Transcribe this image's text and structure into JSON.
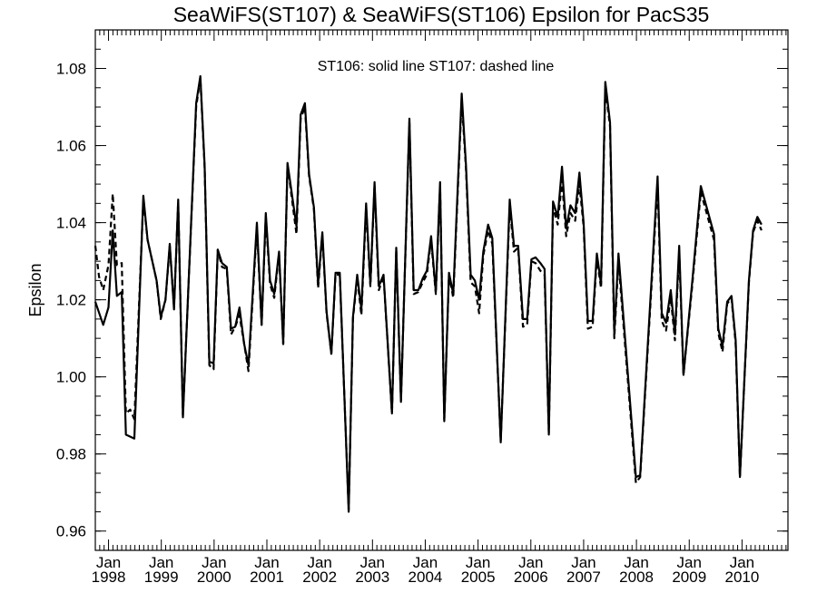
{
  "chart_data": {
    "type": "line",
    "title": "SeaWiFS(ST107) & SeaWiFS(ST106)  Epsilon for PacS35",
    "annotation": "ST106: solid line   ST107: dashed line",
    "ylabel": "Epsilon",
    "xlabel": "",
    "ylim": [
      0.955,
      1.09
    ],
    "yticks": [
      0.96,
      0.98,
      1.0,
      1.02,
      1.04,
      1.06,
      1.08
    ],
    "ytick_labels": [
      "0.96",
      "0.98",
      "1.00",
      "1.02",
      "1.04",
      "1.06",
      "1.08"
    ],
    "x_unit": "decimal year",
    "xlim": [
      1997.75,
      2010.87
    ],
    "xticks": [
      {
        "x": 1998.0,
        "month": "Jan",
        "year": "1998"
      },
      {
        "x": 1999.0,
        "month": "Jan",
        "year": "1999"
      },
      {
        "x": 2000.0,
        "month": "Jan",
        "year": "2000"
      },
      {
        "x": 2001.0,
        "month": "Jan",
        "year": "2001"
      },
      {
        "x": 2002.0,
        "month": "Jan",
        "year": "2002"
      },
      {
        "x": 2003.0,
        "month": "Jan",
        "year": "2003"
      },
      {
        "x": 2004.0,
        "month": "Jan",
        "year": "2004"
      },
      {
        "x": 2005.0,
        "month": "Jan",
        "year": "2005"
      },
      {
        "x": 2006.0,
        "month": "Jan",
        "year": "2006"
      },
      {
        "x": 2007.0,
        "month": "Jan",
        "year": "2007"
      },
      {
        "x": 2008.0,
        "month": "Jan",
        "year": "2008"
      },
      {
        "x": 2009.0,
        "month": "Jan",
        "year": "2009"
      },
      {
        "x": 2010.0,
        "month": "Jan",
        "year": "2010"
      }
    ],
    "series": [
      {
        "name": "ST106",
        "style": "solid",
        "color": "#000000",
        "points": [
          [
            1997.75,
            1.0195
          ],
          [
            1997.9,
            1.0135
          ],
          [
            1998.0,
            1.018
          ],
          [
            1998.08,
            1.038
          ],
          [
            1998.16,
            1.021
          ],
          [
            1998.25,
            1.022
          ],
          [
            1998.33,
            0.985
          ],
          [
            1998.49,
            0.984
          ],
          [
            1998.66,
            1.047
          ],
          [
            1998.74,
            1.0355
          ],
          [
            1998.91,
            1.025
          ],
          [
            1998.99,
            1.0155
          ],
          [
            1999.08,
            1.02
          ],
          [
            1999.16,
            1.0345
          ],
          [
            1999.24,
            1.0175
          ],
          [
            1999.32,
            1.046
          ],
          [
            1999.41,
            0.9895
          ],
          [
            1999.66,
            1.071
          ],
          [
            1999.74,
            1.078
          ],
          [
            1999.82,
            1.055
          ],
          [
            1999.91,
            1.004
          ],
          [
            1999.99,
            1.0035
          ],
          [
            2000.07,
            1.033
          ],
          [
            2000.15,
            1.0295
          ],
          [
            2000.24,
            1.0285
          ],
          [
            2000.32,
            1.0125
          ],
          [
            2000.4,
            1.013
          ],
          [
            2000.48,
            1.018
          ],
          [
            2000.57,
            1.0085
          ],
          [
            2000.65,
            1.003
          ],
          [
            2000.81,
            1.04
          ],
          [
            2000.9,
            1.0135
          ],
          [
            2000.98,
            1.0425
          ],
          [
            2001.06,
            1.025
          ],
          [
            2001.14,
            1.0215
          ],
          [
            2001.23,
            1.0325
          ],
          [
            2001.31,
            1.0085
          ],
          [
            2001.39,
            1.0555
          ],
          [
            2001.56,
            1.039
          ],
          [
            2001.64,
            1.068
          ],
          [
            2001.72,
            1.071
          ],
          [
            2001.8,
            1.0525
          ],
          [
            2001.89,
            1.044
          ],
          [
            2001.97,
            1.024
          ],
          [
            2002.05,
            1.0375
          ],
          [
            2002.13,
            1.017
          ],
          [
            2002.22,
            1.006
          ],
          [
            2002.3,
            1.027
          ],
          [
            2002.38,
            1.027
          ],
          [
            2002.55,
            0.965
          ],
          [
            2002.63,
            1.0155
          ],
          [
            2002.71,
            1.0265
          ],
          [
            2002.79,
            1.0175
          ],
          [
            2002.88,
            1.045
          ],
          [
            2002.96,
            1.024
          ],
          [
            2003.04,
            1.0505
          ],
          [
            2003.12,
            1.0235
          ],
          [
            2003.21,
            1.0265
          ],
          [
            2003.37,
            0.9905
          ],
          [
            2003.45,
            1.0335
          ],
          [
            2003.54,
            0.9935
          ],
          [
            2003.7,
            1.067
          ],
          [
            2003.78,
            1.0225
          ],
          [
            2003.87,
            1.0225
          ],
          [
            2003.95,
            1.0255
          ],
          [
            2004.03,
            1.0275
          ],
          [
            2004.11,
            1.0365
          ],
          [
            2004.2,
            1.022
          ],
          [
            2004.28,
            1.0505
          ],
          [
            2004.36,
            0.9885
          ],
          [
            2004.45,
            1.027
          ],
          [
            2004.53,
            1.0215
          ],
          [
            2004.69,
            1.0735
          ],
          [
            2004.77,
            1.055
          ],
          [
            2004.86,
            1.0265
          ],
          [
            2004.94,
            1.025
          ],
          [
            2005.02,
            1.02
          ],
          [
            2005.1,
            1.0325
          ],
          [
            2005.19,
            1.0395
          ],
          [
            2005.27,
            1.036
          ],
          [
            2005.43,
            0.983
          ],
          [
            2005.6,
            1.046
          ],
          [
            2005.68,
            1.034
          ],
          [
            2005.76,
            1.034
          ],
          [
            2005.85,
            1.015
          ],
          [
            2005.93,
            1.015
          ],
          [
            2006.01,
            1.0305
          ],
          [
            2006.09,
            1.031
          ],
          [
            2006.18,
            1.0295
          ],
          [
            2006.26,
            1.028
          ],
          [
            2006.34,
            0.985
          ],
          [
            2006.42,
            1.0455
          ],
          [
            2006.51,
            1.0415
          ],
          [
            2006.59,
            1.0545
          ],
          [
            2006.67,
            1.0385
          ],
          [
            2006.75,
            1.0445
          ],
          [
            2006.84,
            1.0425
          ],
          [
            2006.92,
            1.053
          ],
          [
            2007.0,
            1.04
          ],
          [
            2007.08,
            1.0145
          ],
          [
            2007.17,
            1.0145
          ],
          [
            2007.25,
            1.032
          ],
          [
            2007.33,
            1.024
          ],
          [
            2007.41,
            1.0765
          ],
          [
            2007.5,
            1.066
          ],
          [
            2007.58,
            1.0115
          ],
          [
            2007.66,
            1.032
          ],
          [
            2007.99,
            0.974
          ],
          [
            2008.07,
            0.9745
          ],
          [
            2008.4,
            1.052
          ],
          [
            2008.48,
            1.0165
          ],
          [
            2008.56,
            1.014
          ],
          [
            2008.65,
            1.0225
          ],
          [
            2008.73,
            1.011
          ],
          [
            2008.81,
            1.034
          ],
          [
            2008.89,
            1.0005
          ],
          [
            2009.06,
            1.025
          ],
          [
            2009.22,
            1.0495
          ],
          [
            2009.47,
            1.037
          ],
          [
            2009.55,
            1.0125
          ],
          [
            2009.63,
            1.008
          ],
          [
            2009.72,
            1.0195
          ],
          [
            2009.8,
            1.021
          ],
          [
            2009.88,
            1.0095
          ],
          [
            2009.96,
            0.974
          ],
          [
            2010.13,
            1.025
          ],
          [
            2010.21,
            1.038
          ],
          [
            2010.29,
            1.0415
          ],
          [
            2010.37,
            1.0395
          ]
        ]
      },
      {
        "name": "ST107",
        "style": "dashed",
        "color": "#000000",
        "points": [
          [
            1997.75,
            1.034
          ],
          [
            1997.82,
            1.026
          ],
          [
            1997.9,
            1.0225
          ],
          [
            1998.0,
            1.029
          ],
          [
            1998.08,
            1.0475
          ],
          [
            1998.16,
            1.029
          ],
          [
            1998.25,
            1.0295
          ],
          [
            1998.33,
            0.9905
          ],
          [
            1998.41,
            0.9915
          ],
          [
            1998.49,
            0.989
          ],
          [
            1998.66,
            1.046
          ],
          [
            1998.74,
            1.0355
          ],
          [
            1998.91,
            1.025
          ],
          [
            1998.99,
            1.015
          ],
          [
            1999.08,
            1.02
          ],
          [
            1999.16,
            1.034
          ],
          [
            1999.24,
            1.018
          ],
          [
            1999.32,
            1.0455
          ],
          [
            1999.41,
            0.99
          ],
          [
            1999.66,
            1.07
          ],
          [
            1999.74,
            1.0775
          ],
          [
            1999.82,
            1.0545
          ],
          [
            1999.91,
            1.003
          ],
          [
            1999.99,
            1.002
          ],
          [
            2000.07,
            1.033
          ],
          [
            2000.15,
            1.0285
          ],
          [
            2000.24,
            1.028
          ],
          [
            2000.32,
            1.011
          ],
          [
            2000.4,
            1.013
          ],
          [
            2000.48,
            1.016
          ],
          [
            2000.57,
            1.0085
          ],
          [
            2000.65,
            1.0015
          ],
          [
            2000.81,
            1.039
          ],
          [
            2000.9,
            1.0135
          ],
          [
            2000.98,
            1.0415
          ],
          [
            2001.06,
            1.024
          ],
          [
            2001.14,
            1.0205
          ],
          [
            2001.23,
            1.032
          ],
          [
            2001.31,
            1.0085
          ],
          [
            2001.39,
            1.055
          ],
          [
            2001.56,
            1.037
          ],
          [
            2001.64,
            1.067
          ],
          [
            2001.72,
            1.07
          ],
          [
            2001.8,
            1.052
          ],
          [
            2001.89,
            1.0435
          ],
          [
            2001.97,
            1.023
          ],
          [
            2002.05,
            1.037
          ],
          [
            2002.13,
            1.0165
          ],
          [
            2002.22,
            1.006
          ],
          [
            2002.3,
            1.0265
          ],
          [
            2002.38,
            1.0265
          ],
          [
            2002.55,
            0.9655
          ],
          [
            2002.63,
            1.015
          ],
          [
            2002.71,
            1.0255
          ],
          [
            2002.79,
            1.016
          ],
          [
            2002.88,
            1.044
          ],
          [
            2002.96,
            1.0235
          ],
          [
            2003.04,
            1.0495
          ],
          [
            2003.12,
            1.0225
          ],
          [
            2003.21,
            1.026
          ],
          [
            2003.37,
            0.9905
          ],
          [
            2003.45,
            1.033
          ],
          [
            2003.54,
            0.994
          ],
          [
            2003.7,
            1.066
          ],
          [
            2003.78,
            1.0215
          ],
          [
            2003.87,
            1.022
          ],
          [
            2003.95,
            1.0245
          ],
          [
            2004.03,
            1.0265
          ],
          [
            2004.11,
            1.0355
          ],
          [
            2004.2,
            1.0215
          ],
          [
            2004.28,
            1.0495
          ],
          [
            2004.36,
            0.989
          ],
          [
            2004.45,
            1.0265
          ],
          [
            2004.53,
            1.0205
          ],
          [
            2004.69,
            1.072
          ],
          [
            2004.77,
            1.054
          ],
          [
            2004.86,
            1.0245
          ],
          [
            2004.94,
            1.0235
          ],
          [
            2005.02,
            1.0165
          ],
          [
            2005.1,
            1.0315
          ],
          [
            2005.19,
            1.038
          ],
          [
            2005.27,
            1.0345
          ],
          [
            2005.43,
            0.9835
          ],
          [
            2005.6,
            1.0445
          ],
          [
            2005.68,
            1.0325
          ],
          [
            2005.76,
            1.0335
          ],
          [
            2005.85,
            1.013
          ],
          [
            2005.93,
            1.0135
          ],
          [
            2006.01,
            1.03
          ],
          [
            2006.09,
            1.0295
          ],
          [
            2006.18,
            1.0275
          ],
          [
            2006.26,
            1.0265
          ],
          [
            2006.34,
            0.9855
          ],
          [
            2006.42,
            1.044
          ],
          [
            2006.51,
            1.0395
          ],
          [
            2006.59,
            1.051
          ],
          [
            2006.67,
            1.0365
          ],
          [
            2006.75,
            1.0425
          ],
          [
            2006.84,
            1.0405
          ],
          [
            2006.92,
            1.05
          ],
          [
            2007.0,
            1.039
          ],
          [
            2007.08,
            1.0125
          ],
          [
            2007.17,
            1.013
          ],
          [
            2007.25,
            1.031
          ],
          [
            2007.33,
            1.023
          ],
          [
            2007.41,
            1.075
          ],
          [
            2007.5,
            1.065
          ],
          [
            2007.58,
            1.01
          ],
          [
            2007.66,
            1.03
          ],
          [
            2007.99,
            0.9725
          ],
          [
            2008.07,
            0.974
          ],
          [
            2008.4,
            1.05
          ],
          [
            2008.48,
            1.0145
          ],
          [
            2008.56,
            1.012
          ],
          [
            2008.65,
            1.0205
          ],
          [
            2008.73,
            1.0095
          ],
          [
            2008.81,
            1.0325
          ],
          [
            2008.89,
            1.0005
          ],
          [
            2009.06,
            1.024
          ],
          [
            2009.22,
            1.048
          ],
          [
            2009.47,
            1.0355
          ],
          [
            2009.55,
            1.0115
          ],
          [
            2009.63,
            1.0065
          ],
          [
            2009.72,
            1.019
          ],
          [
            2009.8,
            1.0205
          ],
          [
            2009.88,
            1.0085
          ],
          [
            2009.96,
            0.974
          ],
          [
            2010.13,
            1.0245
          ],
          [
            2010.21,
            1.0375
          ],
          [
            2010.29,
            1.0405
          ],
          [
            2010.37,
            1.038
          ]
        ]
      }
    ]
  }
}
